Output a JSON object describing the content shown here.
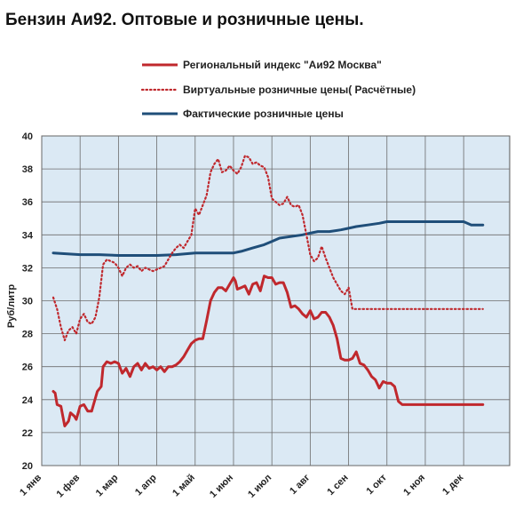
{
  "chart_data": {
    "type": "line",
    "title": "Бензин Аи92. Оптовые и розничные цены.",
    "ylabel": "Руб/литр",
    "xlabel": "",
    "ylim": [
      20,
      40
    ],
    "yticks": [
      20,
      22,
      24,
      26,
      28,
      30,
      32,
      34,
      36,
      38,
      40
    ],
    "xlim": [
      0,
      12.2
    ],
    "xticks": [
      {
        "pos": 0,
        "label": "1 янв"
      },
      {
        "pos": 1,
        "label": "1 фев"
      },
      {
        "pos": 2,
        "label": "1 мар"
      },
      {
        "pos": 3,
        "label": "1 апр"
      },
      {
        "pos": 4,
        "label": "1 май"
      },
      {
        "pos": 5,
        "label": "1 июн"
      },
      {
        "pos": 6,
        "label": "1 июл"
      },
      {
        "pos": 7,
        "label": "1 авг"
      },
      {
        "pos": 8,
        "label": "1 сен"
      },
      {
        "pos": 9,
        "label": "1 окт"
      },
      {
        "pos": 10,
        "label": "1 ноя"
      },
      {
        "pos": 11,
        "label": "1 дек"
      }
    ],
    "grid": true,
    "legend_position": "top",
    "series": [
      {
        "name": "Региональный индекс \"Аи92 Москва\"",
        "style": "solid",
        "color": "#c0282d",
        "x": [
          0.3,
          0.35,
          0.4,
          0.5,
          0.6,
          0.7,
          0.75,
          0.85,
          0.9,
          1.0,
          1.1,
          1.2,
          1.3,
          1.45,
          1.55,
          1.6,
          1.7,
          1.8,
          1.9,
          2.0,
          2.1,
          2.2,
          2.3,
          2.4,
          2.5,
          2.6,
          2.7,
          2.8,
          2.9,
          3.0,
          3.1,
          3.2,
          3.3,
          3.4,
          3.5,
          3.6,
          3.7,
          3.8,
          3.9,
          4.0,
          4.1,
          4.2,
          4.3,
          4.4,
          4.5,
          4.6,
          4.7,
          4.8,
          4.9,
          5.0,
          5.05,
          5.1,
          5.2,
          5.3,
          5.4,
          5.5,
          5.6,
          5.7,
          5.8,
          5.9,
          6.0,
          6.1,
          6.2,
          6.3,
          6.4,
          6.5,
          6.6,
          6.7,
          6.8,
          6.9,
          7.0,
          7.1,
          7.2,
          7.3,
          7.4,
          7.5,
          7.6,
          7.7,
          7.8,
          7.9,
          8.0,
          8.1,
          8.2,
          8.3,
          8.4,
          8.5,
          8.6,
          8.7,
          8.8,
          8.9,
          9.0,
          9.1,
          9.2,
          9.3,
          9.4,
          9.5,
          9.6,
          9.7,
          9.8,
          9.85,
          9.9,
          10.0,
          10.1,
          10.2,
          10.3,
          10.4,
          10.5,
          10.6,
          10.7,
          10.8,
          10.9,
          11.0,
          11.1,
          11.2,
          11.3,
          11.4,
          11.5
        ],
        "y": [
          24.5,
          24.4,
          23.7,
          23.6,
          22.4,
          22.7,
          23.2,
          23.0,
          22.8,
          23.6,
          23.7,
          23.3,
          23.3,
          24.5,
          24.8,
          26.0,
          26.3,
          26.2,
          26.3,
          26.2,
          25.6,
          25.9,
          25.4,
          26.0,
          26.2,
          25.8,
          26.2,
          25.9,
          26.0,
          25.8,
          26.0,
          25.7,
          26.0,
          26.0,
          26.1,
          26.3,
          26.6,
          27.0,
          27.4,
          27.6,
          27.7,
          27.7,
          28.8,
          30.0,
          30.5,
          30.8,
          30.8,
          30.6,
          31.0,
          31.4,
          31.2,
          30.7,
          30.8,
          30.9,
          30.4,
          31.0,
          31.1,
          30.6,
          31.5,
          31.4,
          31.4,
          31.0,
          31.1,
          31.1,
          30.5,
          29.6,
          29.7,
          29.5,
          29.2,
          29.0,
          29.4,
          28.9,
          29.0,
          29.3,
          29.3,
          29.0,
          28.5,
          27.7,
          26.5,
          26.4,
          26.4,
          26.5,
          26.9,
          26.2,
          26.1,
          25.8,
          25.4,
          25.2,
          24.7,
          25.1,
          25.0,
          25.0,
          24.8,
          23.9,
          23.7,
          23.7,
          23.7,
          23.7,
          23.7,
          23.7,
          23.7,
          23.7,
          23.7,
          23.7,
          23.7,
          23.7,
          23.7,
          23.7,
          23.7,
          23.7,
          23.7,
          23.7,
          23.7,
          23.7,
          23.7,
          23.7,
          23.7
        ]
      },
      {
        "name": "Виртуальные розничные цены( Расчётные)",
        "style": "dotted",
        "color": "#c0282d",
        "x": [
          0.3,
          0.4,
          0.5,
          0.6,
          0.7,
          0.8,
          0.9,
          1.0,
          1.1,
          1.2,
          1.3,
          1.4,
          1.5,
          1.6,
          1.7,
          1.8,
          1.9,
          2.0,
          2.1,
          2.2,
          2.3,
          2.4,
          2.5,
          2.6,
          2.7,
          2.8,
          2.9,
          3.0,
          3.1,
          3.2,
          3.3,
          3.4,
          3.5,
          3.6,
          3.7,
          3.8,
          3.9,
          4.0,
          4.1,
          4.2,
          4.3,
          4.4,
          4.5,
          4.6,
          4.7,
          4.8,
          4.9,
          5.0,
          5.1,
          5.2,
          5.3,
          5.4,
          5.5,
          5.6,
          5.7,
          5.8,
          5.9,
          6.0,
          6.1,
          6.2,
          6.3,
          6.4,
          6.5,
          6.6,
          6.7,
          6.8,
          6.9,
          7.0,
          7.1,
          7.2,
          7.3,
          7.4,
          7.5,
          7.6,
          7.7,
          7.8,
          7.9,
          8.0,
          8.1,
          8.2,
          8.3,
          8.4,
          8.5,
          8.6,
          8.7,
          8.8,
          8.9,
          9.0,
          9.1,
          9.2,
          9.3,
          9.4,
          9.5,
          9.6,
          9.7,
          9.8,
          9.9,
          10.0,
          10.1,
          10.2,
          10.3,
          10.4,
          10.5,
          10.6,
          10.7,
          10.8,
          10.9,
          11.0,
          11.1,
          11.2,
          11.3,
          11.4,
          11.5
        ],
        "y": [
          30.2,
          29.5,
          28.4,
          27.6,
          28.2,
          28.4,
          28.0,
          28.9,
          29.2,
          28.7,
          28.6,
          29.0,
          30.2,
          32.2,
          32.5,
          32.4,
          32.3,
          32.0,
          31.5,
          32.0,
          32.2,
          32.0,
          32.1,
          31.8,
          32.0,
          31.9,
          31.8,
          31.9,
          32.0,
          32.1,
          32.5,
          32.9,
          33.2,
          33.4,
          33.2,
          33.6,
          34.0,
          35.6,
          35.2,
          35.8,
          36.4,
          37.8,
          38.3,
          38.6,
          37.8,
          37.9,
          38.2,
          37.9,
          37.7,
          38.1,
          38.8,
          38.7,
          38.3,
          38.4,
          38.2,
          38.1,
          37.5,
          36.2,
          36.0,
          35.8,
          35.9,
          36.3,
          35.8,
          35.7,
          35.8,
          35.2,
          34.0,
          32.8,
          32.4,
          32.6,
          33.3,
          32.6,
          32.0,
          31.4,
          31.0,
          30.6,
          30.4,
          30.8,
          29.5,
          29.5,
          29.5,
          29.5,
          29.5,
          29.5,
          29.5,
          29.5,
          29.5,
          29.5,
          29.5,
          29.5,
          29.5,
          29.5,
          29.5,
          29.5,
          29.5,
          29.5,
          29.5,
          29.5,
          29.5,
          29.5,
          29.5,
          29.5,
          29.5,
          29.5,
          29.5,
          29.5,
          29.5,
          29.5,
          29.5,
          29.5,
          29.5,
          29.5,
          29.5
        ]
      },
      {
        "name": "Фактические розничные цены",
        "style": "solid",
        "color": "#1f4e79",
        "x": [
          0.3,
          1.0,
          1.5,
          2.0,
          2.5,
          3.0,
          3.5,
          4.0,
          4.5,
          5.0,
          5.2,
          5.5,
          5.8,
          6.0,
          6.2,
          6.5,
          6.8,
          7.0,
          7.2,
          7.5,
          7.8,
          8.0,
          8.2,
          8.5,
          8.8,
          9.0,
          9.2,
          9.5,
          9.8,
          10.0,
          10.2,
          10.5,
          10.8,
          11.0,
          11.2,
          11.5
        ],
        "y": [
          32.9,
          32.8,
          32.8,
          32.75,
          32.75,
          32.75,
          32.8,
          32.9,
          32.9,
          32.9,
          33.0,
          33.2,
          33.4,
          33.6,
          33.8,
          33.9,
          34.0,
          34.1,
          34.2,
          34.2,
          34.3,
          34.4,
          34.5,
          34.6,
          34.7,
          34.8,
          34.8,
          34.8,
          34.8,
          34.8,
          34.8,
          34.8,
          34.8,
          34.8,
          34.6,
          34.6
        ]
      }
    ]
  }
}
